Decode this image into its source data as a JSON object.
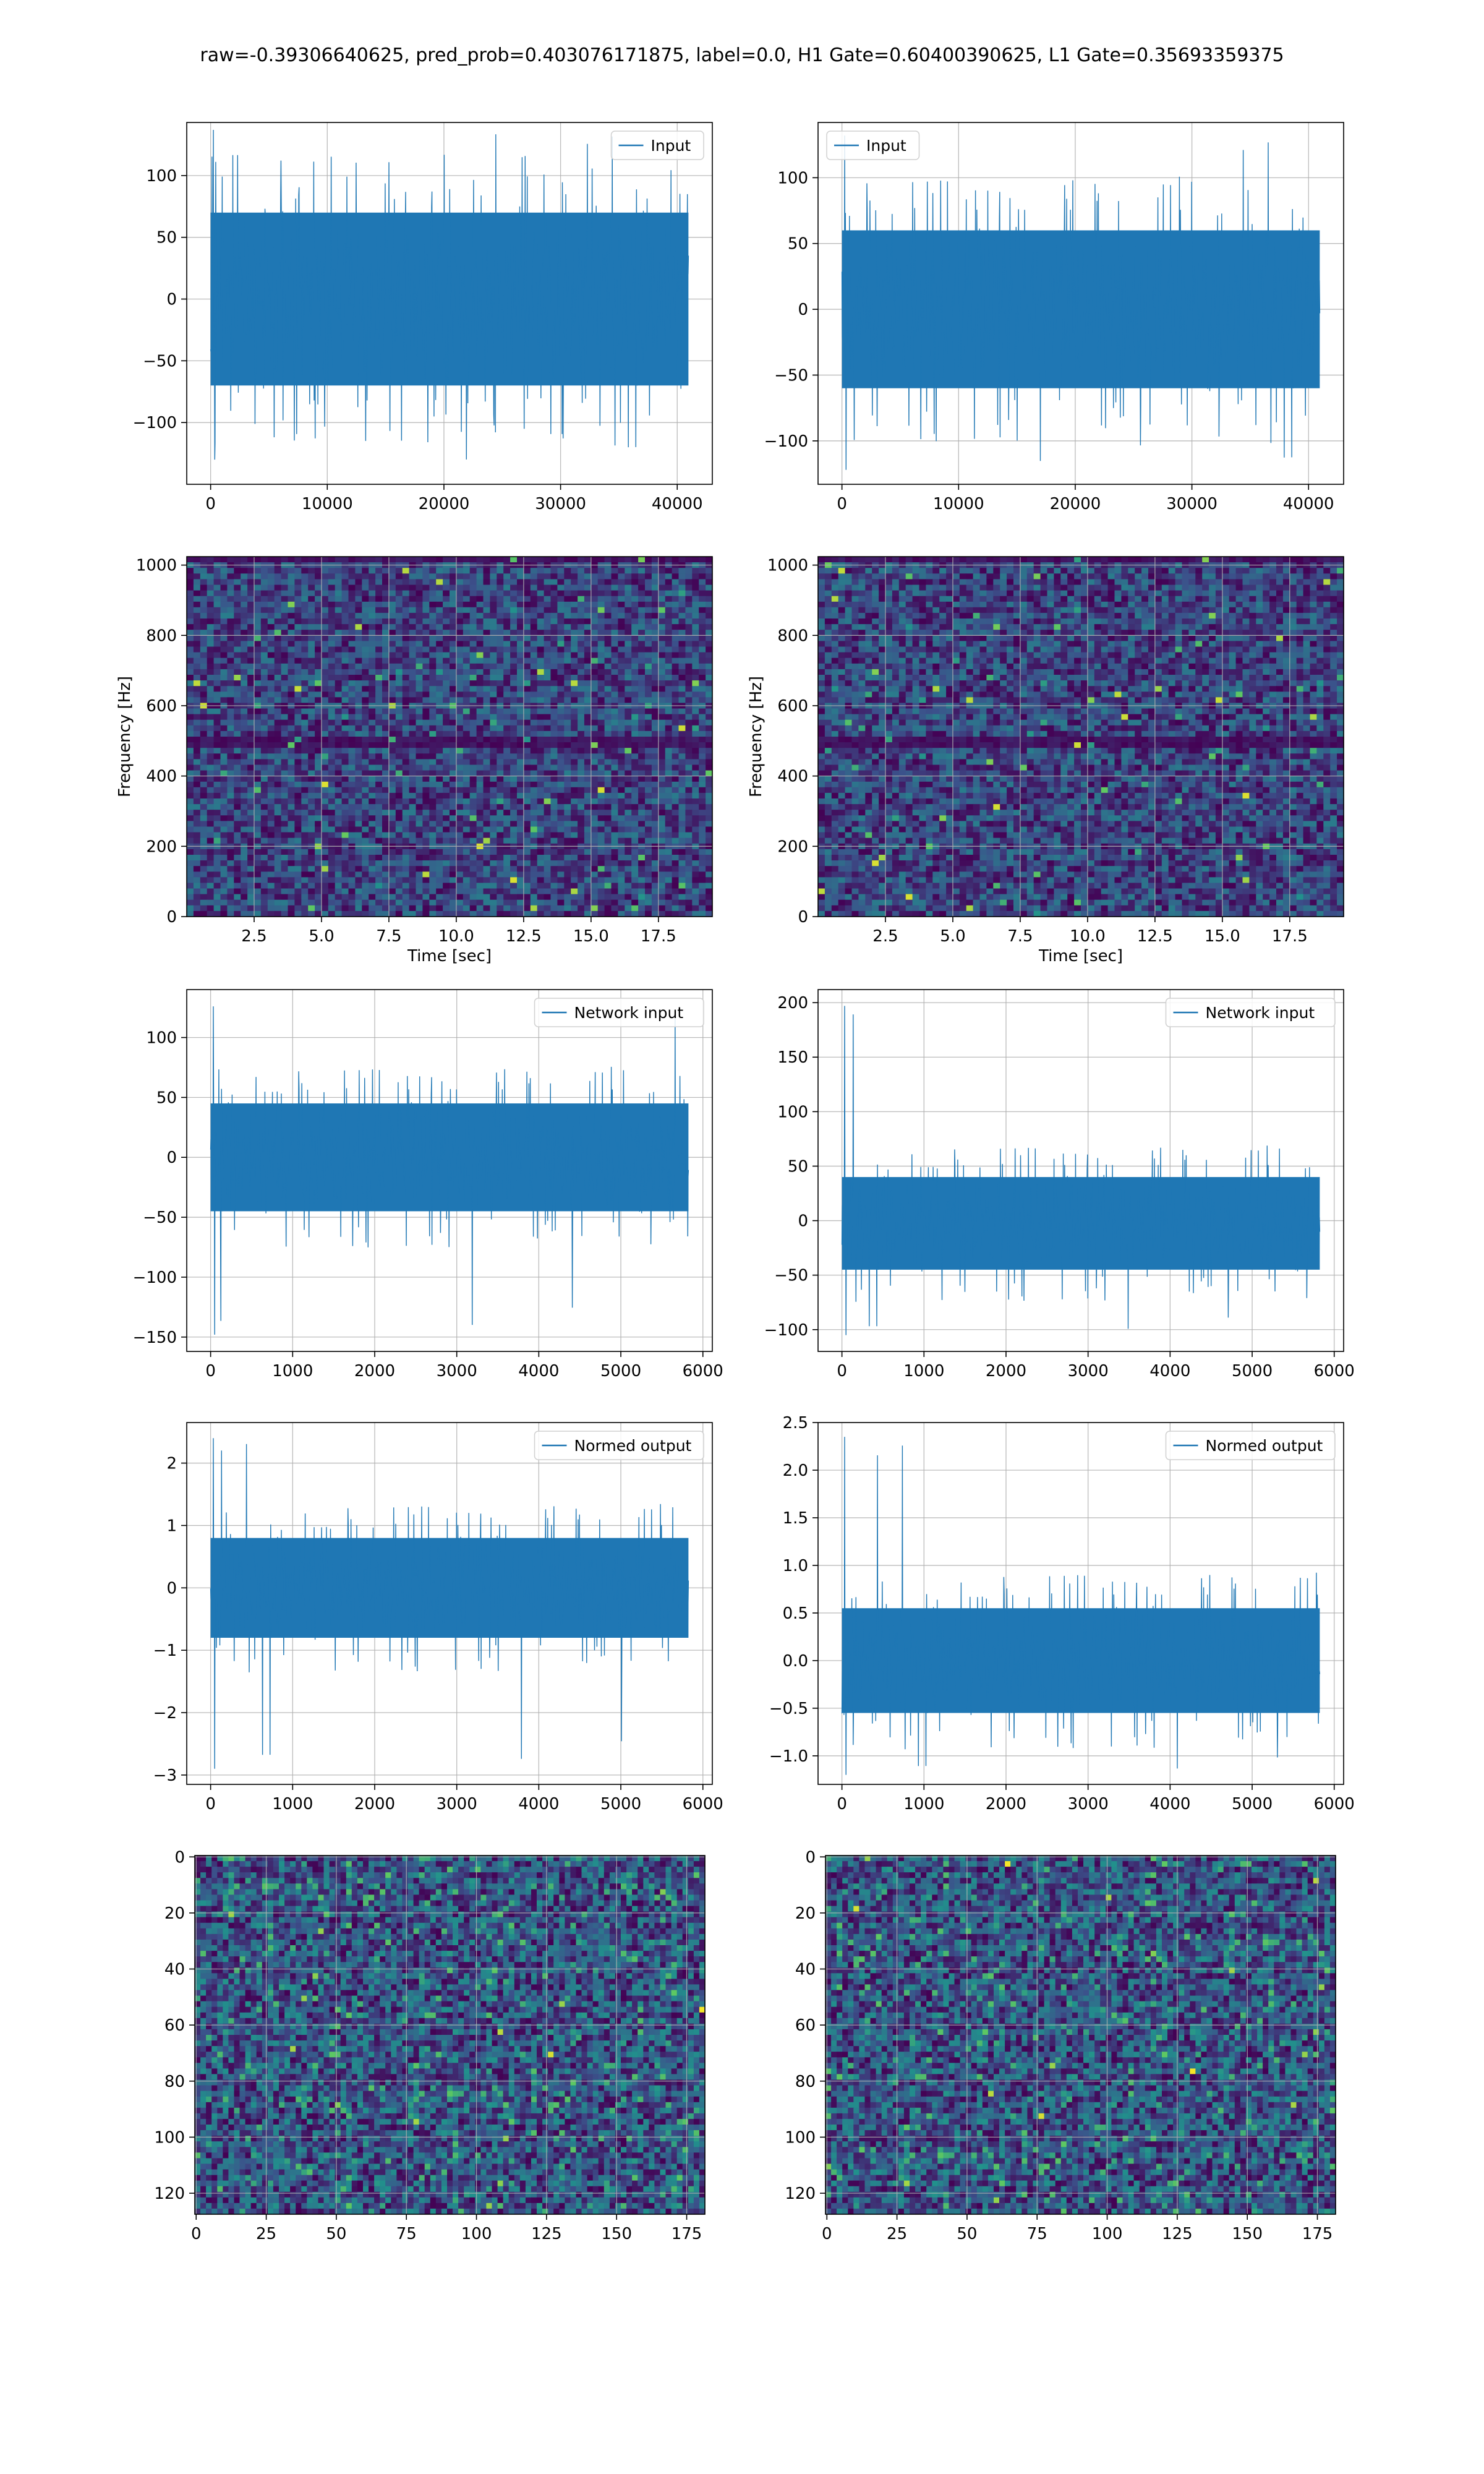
{
  "figure": {
    "suptitle": "raw=-0.39306640625, pred_prob=0.403076171875, label=0.0, H1 Gate=0.60400390625, L1 Gate=0.35693359375",
    "line_color": "#1f77b4",
    "grid_color": "#b0b0b0"
  },
  "chart_data": [
    {
      "type": "line",
      "row": 0,
      "col": 0,
      "series": [
        {
          "name": "Input",
          "length": 40960,
          "approx_band": [
            -70,
            70
          ],
          "approx_extremes": [
            -130,
            137
          ]
        }
      ],
      "x_range": [
        0,
        40960
      ],
      "xlim": [
        -2048,
        43008
      ],
      "ylim": [
        -150,
        143
      ],
      "xticks": [
        0,
        10000,
        20000,
        30000,
        40000
      ],
      "xtick_labels": [
        "0",
        "10000",
        "20000",
        "30000",
        "40000"
      ],
      "yticks": [
        -100,
        -50,
        0,
        50,
        100
      ],
      "ytick_labels": [
        "−100",
        "−50",
        "0",
        "50",
        "100"
      ],
      "xlabel": "",
      "ylabel": "",
      "legend": "upper right",
      "grid": true
    },
    {
      "type": "line",
      "row": 0,
      "col": 1,
      "series": [
        {
          "name": "Input",
          "length": 40960,
          "approx_band": [
            -60,
            60
          ],
          "approx_extremes": [
            -122,
            132
          ]
        }
      ],
      "x_range": [
        0,
        40960
      ],
      "xlim": [
        -2048,
        43008
      ],
      "ylim": [
        -133,
        142
      ],
      "xticks": [
        0,
        10000,
        20000,
        30000,
        40000
      ],
      "xtick_labels": [
        "0",
        "10000",
        "20000",
        "30000",
        "40000"
      ],
      "yticks": [
        -100,
        -50,
        0,
        50,
        100
      ],
      "ytick_labels": [
        "−100",
        "−50",
        "0",
        "50",
        "100"
      ],
      "xlabel": "",
      "ylabel": "",
      "legend": "upper left",
      "grid": true
    },
    {
      "type": "heatmap",
      "row": 1,
      "col": 0,
      "colormap": "viridis",
      "xlim": [
        0,
        19.5
      ],
      "ylim": [
        0,
        1024
      ],
      "xticks": [
        2.5,
        5.0,
        7.5,
        10.0,
        12.5,
        15.0,
        17.5
      ],
      "xtick_labels": [
        "2.5",
        "5.0",
        "7.5",
        "10.0",
        "12.5",
        "15.0",
        "17.5"
      ],
      "yticks": [
        0,
        200,
        400,
        600,
        800,
        1000
      ],
      "ytick_labels": [
        "0",
        "200",
        "400",
        "600",
        "800",
        "1000"
      ],
      "xlabel": "Time [sec]",
      "ylabel": "Frequency [Hz]",
      "grid": true,
      "low_power_bands_hz": [
        500,
        1015
      ]
    },
    {
      "type": "heatmap",
      "row": 1,
      "col": 1,
      "colormap": "viridis",
      "xlim": [
        0,
        19.5
      ],
      "ylim": [
        0,
        1024
      ],
      "xticks": [
        2.5,
        5.0,
        7.5,
        10.0,
        12.5,
        15.0,
        17.5
      ],
      "xtick_labels": [
        "2.5",
        "5.0",
        "7.5",
        "10.0",
        "12.5",
        "15.0",
        "17.5"
      ],
      "yticks": [
        0,
        200,
        400,
        600,
        800,
        1000
      ],
      "ytick_labels": [
        "0",
        "200",
        "400",
        "600",
        "800",
        "1000"
      ],
      "xlabel": "Time [sec]",
      "ylabel": "Frequency [Hz]",
      "grid": true,
      "low_power_bands_hz": [
        500,
        1015
      ]
    },
    {
      "type": "line",
      "row": 2,
      "col": 0,
      "series": [
        {
          "name": "Network input",
          "length": 5824,
          "approx_band": [
            -45,
            45
          ],
          "approx_extremes": [
            -148,
            126
          ]
        }
      ],
      "x_range": [
        0,
        5824
      ],
      "xlim": [
        -291,
        6115
      ],
      "ylim": [
        -162,
        140
      ],
      "xticks": [
        0,
        1000,
        2000,
        3000,
        4000,
        5000,
        6000
      ],
      "xtick_labels": [
        "0",
        "1000",
        "2000",
        "3000",
        "4000",
        "5000",
        "6000"
      ],
      "yticks": [
        -150,
        -100,
        -50,
        0,
        50,
        100
      ],
      "ytick_labels": [
        "−150",
        "−100",
        "−50",
        "0",
        "50",
        "100"
      ],
      "xlabel": "",
      "ylabel": "",
      "legend": "upper right",
      "grid": true
    },
    {
      "type": "line",
      "row": 2,
      "col": 1,
      "series": [
        {
          "name": "Network input",
          "length": 5824,
          "approx_band": [
            -45,
            40
          ],
          "approx_extremes": [
            -105,
            197
          ]
        }
      ],
      "x_range": [
        0,
        5824
      ],
      "xlim": [
        -291,
        6115
      ],
      "ylim": [
        -120,
        212
      ],
      "xticks": [
        0,
        1000,
        2000,
        3000,
        4000,
        5000,
        6000
      ],
      "xtick_labels": [
        "0",
        "1000",
        "2000",
        "3000",
        "4000",
        "5000",
        "6000"
      ],
      "yticks": [
        -100,
        -50,
        0,
        50,
        100,
        150,
        200
      ],
      "ytick_labels": [
        "−100",
        "−50",
        "0",
        "50",
        "100",
        "150",
        "200"
      ],
      "xlabel": "",
      "ylabel": "",
      "legend": "upper right",
      "grid": true
    },
    {
      "type": "line",
      "row": 3,
      "col": 0,
      "series": [
        {
          "name": "Normed output",
          "length": 5824,
          "approx_band": [
            -0.8,
            0.8
          ],
          "approx_extremes": [
            -2.9,
            2.4
          ]
        }
      ],
      "x_range": [
        0,
        5824
      ],
      "xlim": [
        -291,
        6115
      ],
      "ylim": [
        -3.15,
        2.65
      ],
      "xticks": [
        0,
        1000,
        2000,
        3000,
        4000,
        5000,
        6000
      ],
      "xtick_labels": [
        "0",
        "1000",
        "2000",
        "3000",
        "4000",
        "5000",
        "6000"
      ],
      "yticks": [
        -3,
        -2,
        -1,
        0,
        1,
        2
      ],
      "ytick_labels": [
        "−3",
        "−2",
        "−1",
        "0",
        "1",
        "2"
      ],
      "xlabel": "",
      "ylabel": "",
      "legend": "upper right",
      "grid": true
    },
    {
      "type": "line",
      "row": 3,
      "col": 1,
      "series": [
        {
          "name": "Normed output",
          "length": 5824,
          "approx_band": [
            -0.55,
            0.55
          ],
          "approx_extremes": [
            -1.2,
            2.35
          ]
        }
      ],
      "x_range": [
        0,
        5824
      ],
      "xlim": [
        -291,
        6115
      ],
      "ylim": [
        -1.3,
        2.5
      ],
      "xticks": [
        0,
        1000,
        2000,
        3000,
        4000,
        5000,
        6000
      ],
      "xtick_labels": [
        "0",
        "1000",
        "2000",
        "3000",
        "4000",
        "5000",
        "6000"
      ],
      "yticks": [
        -1.0,
        -0.5,
        0.0,
        0.5,
        1.0,
        1.5,
        2.0,
        2.5
      ],
      "ytick_labels": [
        "−1.0",
        "−0.5",
        "0.0",
        "0.5",
        "1.0",
        "1.5",
        "2.0",
        "2.5"
      ],
      "xlabel": "",
      "ylabel": "",
      "legend": "upper right",
      "grid": true
    },
    {
      "type": "heatmap",
      "row": 4,
      "col": 0,
      "colormap": "viridis",
      "origin": "upper",
      "shape": [
        128,
        182
      ],
      "xlim": [
        -0.5,
        181.5
      ],
      "ylim": [
        127.5,
        -0.5
      ],
      "xticks": [
        0,
        25,
        50,
        75,
        100,
        125,
        150,
        175
      ],
      "xtick_labels": [
        "0",
        "25",
        "50",
        "75",
        "100",
        "125",
        "150",
        "175"
      ],
      "yticks": [
        0,
        20,
        40,
        60,
        80,
        100,
        120
      ],
      "ytick_labels": [
        "0",
        "20",
        "40",
        "60",
        "80",
        "100",
        "120"
      ],
      "xlabel": "",
      "ylabel": "",
      "grid": true
    },
    {
      "type": "heatmap",
      "row": 4,
      "col": 1,
      "colormap": "viridis",
      "origin": "upper",
      "shape": [
        128,
        182
      ],
      "xlim": [
        -0.5,
        181.5
      ],
      "ylim": [
        127.5,
        -0.5
      ],
      "xticks": [
        0,
        25,
        50,
        75,
        100,
        125,
        150,
        175
      ],
      "xtick_labels": [
        "0",
        "25",
        "50",
        "75",
        "100",
        "125",
        "150",
        "175"
      ],
      "yticks": [
        0,
        20,
        40,
        60,
        80,
        100,
        120
      ],
      "ytick_labels": [
        "0",
        "20",
        "40",
        "60",
        "80",
        "100",
        "120"
      ],
      "xlabel": "",
      "ylabel": "",
      "grid": true
    }
  ]
}
